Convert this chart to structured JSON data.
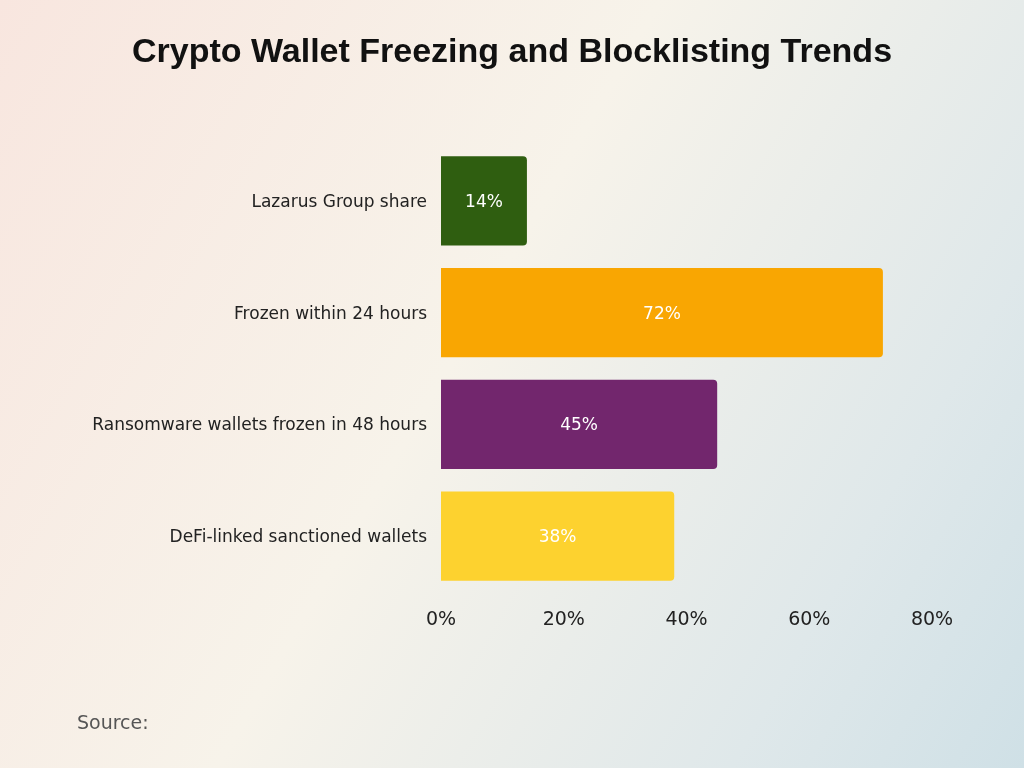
{
  "chart_data": {
    "type": "bar",
    "orientation": "horizontal",
    "title": "Crypto Wallet Freezing and Blocklisting Trends",
    "categories": [
      "Lazarus Group share",
      "Frozen within 24 hours",
      "Ransomware wallets frozen in 48 hours",
      "DeFi-linked sanctioned wallets"
    ],
    "values": [
      14,
      72,
      45,
      38
    ],
    "colors": [
      "#2f5e10",
      "#f9a602",
      "#72266d",
      "#fdd22f"
    ],
    "value_labels": [
      "14%",
      "72%",
      "45%",
      "38%"
    ],
    "xlim": [
      0,
      80
    ],
    "xticks": [
      {
        "value": 0,
        "label": "0%"
      },
      {
        "value": 20,
        "label": "20%"
      },
      {
        "value": 40,
        "label": "40%"
      },
      {
        "value": 60,
        "label": "60%"
      },
      {
        "value": 80,
        "label": "80%"
      }
    ],
    "grid": false,
    "annotations": [
      "Source:"
    ]
  }
}
